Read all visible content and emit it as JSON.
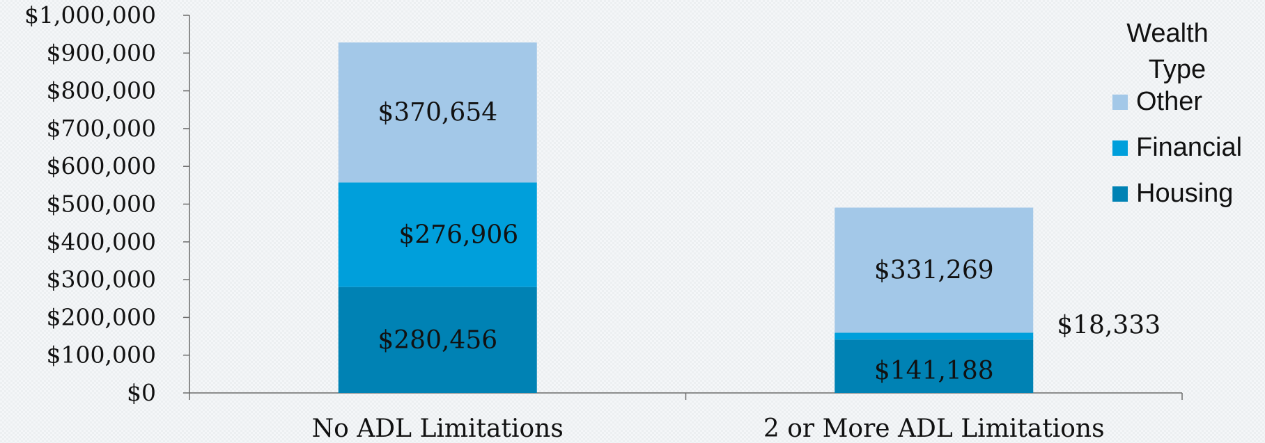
{
  "chart_data": {
    "type": "bar",
    "stacked": true,
    "categories": [
      "No ADL Limitations",
      "2 or More ADL Limitations"
    ],
    "series": [
      {
        "name": "Housing",
        "values": [
          280456,
          141188
        ],
        "color": "#0082b4"
      },
      {
        "name": "Financial",
        "values": [
          276906,
          18333
        ],
        "color": "#009fdb"
      },
      {
        "name": "Other",
        "values": [
          370654,
          331269
        ],
        "color": "#a3c8e8"
      }
    ],
    "data_labels": [
      [
        "$280,456",
        "$141,188"
      ],
      [
        "$276,906",
        "$18,333"
      ],
      [
        "$370,654",
        "$331,269"
      ]
    ],
    "y_ticks": [
      "$0",
      "$100,000",
      "$200,000",
      "$300,000",
      "$400,000",
      "$500,000",
      "$600,000",
      "$700,000",
      "$800,000",
      "$900,000",
      "$1,000,000"
    ],
    "ylim": [
      0,
      1000000
    ],
    "grid": false,
    "legend": {
      "title_lines": [
        "Wealth",
        "Type"
      ],
      "position": "top-right",
      "order": [
        "Other",
        "Financial",
        "Housing"
      ]
    }
  }
}
